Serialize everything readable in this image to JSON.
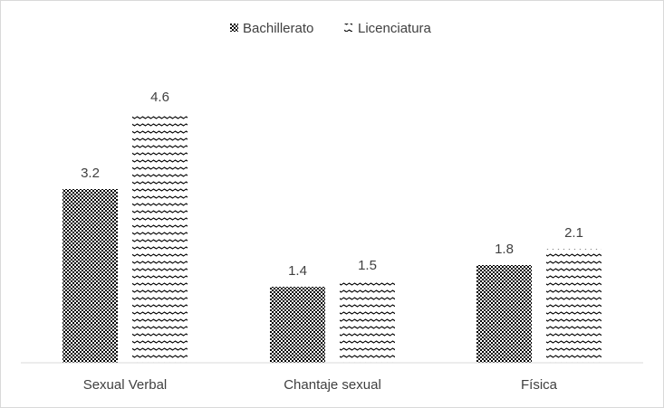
{
  "chart_data": {
    "type": "bar",
    "categories": [
      "Sexual Verbal",
      "Chantaje sexual",
      "Física"
    ],
    "series": [
      {
        "name": "Bachillerato",
        "values": [
          3.2,
          1.4,
          1.8
        ],
        "pattern": "checker",
        "color": "#000000"
      },
      {
        "name": "Licenciatura",
        "values": [
          4.6,
          1.5,
          2.1
        ],
        "pattern": "wave",
        "color": "#000000"
      }
    ],
    "title": "",
    "xlabel": "",
    "ylabel": "",
    "ylim": [
      0,
      5
    ],
    "grid": false,
    "legend_position": "top-center",
    "data_labels": true,
    "data_label_text": [
      [
        "3.2",
        "1.4",
        "1.8"
      ],
      [
        "4.6",
        "1.5",
        "2.1"
      ]
    ]
  }
}
